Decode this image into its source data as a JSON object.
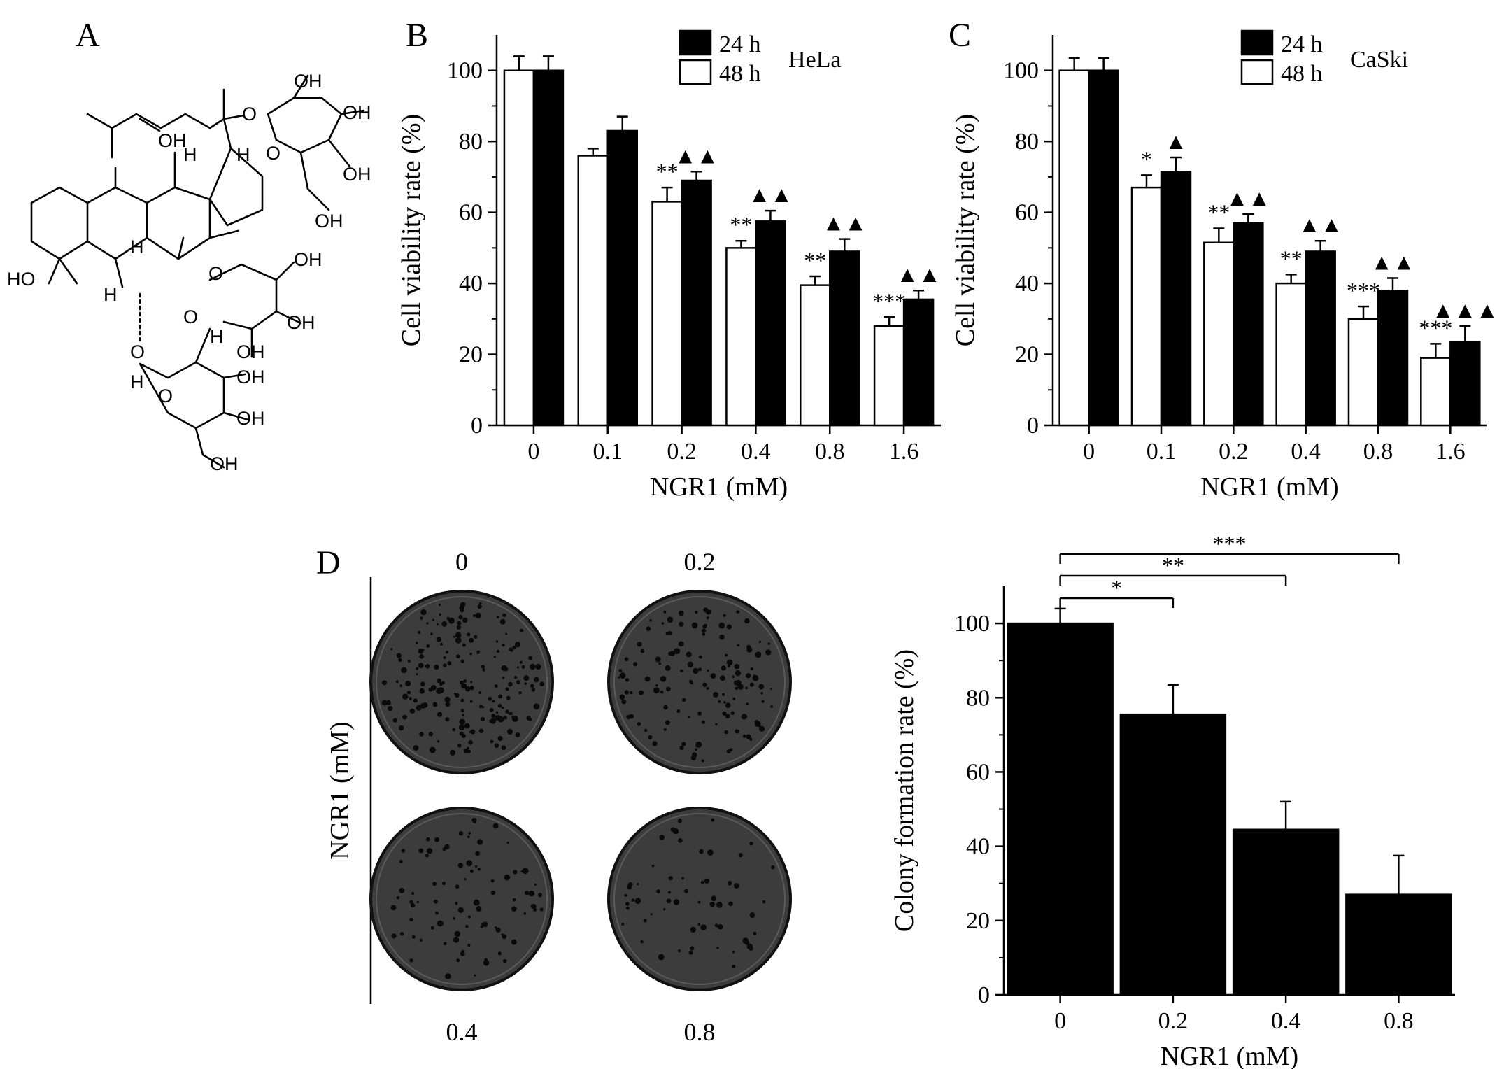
{
  "panels": {
    "a_label": "A",
    "b_label": "B",
    "c_label": "C",
    "d_label": "D"
  },
  "chart_data": [
    {
      "panel": "B",
      "type": "bar",
      "categories": [
        "0",
        "0.1",
        "0.2",
        "0.4",
        "0.8",
        "1.6"
      ],
      "xlabel": "NGR1 (mM)",
      "ylabel": "Cell viability rate (%)",
      "ylim": [
        0,
        110
      ],
      "yticks": [
        "0",
        "20",
        "40",
        "60",
        "80",
        "100"
      ],
      "cell_line": "HeLa",
      "legend": [
        "24 h",
        "48 h"
      ],
      "legend_position": "top-right",
      "series": [
        {
          "name": "48 h",
          "fill": "#ffffff",
          "values": [
            100,
            76,
            63,
            50,
            39.5,
            28
          ],
          "errors": [
            4,
            2,
            4,
            2,
            2.5,
            2.5
          ]
        },
        {
          "name": "24 h",
          "fill": "#000000",
          "values": [
            100,
            83,
            69,
            57.5,
            49,
            35.5
          ],
          "errors": [
            4,
            4,
            2.5,
            3,
            3.5,
            2.5
          ]
        }
      ],
      "annotations_48h": [
        "",
        "",
        "**",
        "**",
        "**",
        "***"
      ],
      "annotations_24h": [
        "",
        "",
        "▲▲",
        "▲▲",
        "▲▲",
        "▲▲"
      ]
    },
    {
      "panel": "C",
      "type": "bar",
      "categories": [
        "0",
        "0.1",
        "0.2",
        "0.4",
        "0.8",
        "1.6"
      ],
      "xlabel": "NGR1 (mM)",
      "ylabel": "Cell viability rate (%)",
      "ylim": [
        0,
        110
      ],
      "yticks": [
        "0",
        "20",
        "40",
        "60",
        "80",
        "100"
      ],
      "cell_line": "CaSki",
      "legend": [
        "24 h",
        "48 h"
      ],
      "legend_position": "top-right",
      "series": [
        {
          "name": "48 h",
          "fill": "#ffffff",
          "values": [
            100,
            67,
            51.5,
            40,
            30,
            19
          ],
          "errors": [
            3.5,
            3.5,
            4,
            2.5,
            3.5,
            4
          ]
        },
        {
          "name": "24 h",
          "fill": "#000000",
          "values": [
            100,
            71.5,
            57,
            49,
            38,
            23.5
          ],
          "errors": [
            3.5,
            4,
            2.5,
            3,
            3.5,
            4.5
          ]
        }
      ],
      "annotations_48h": [
        "",
        "*",
        "**",
        "**",
        "***",
        "***"
      ],
      "annotations_24h": [
        "",
        "▲",
        "▲▲",
        "▲▲",
        "▲▲",
        "▲▲▲"
      ]
    },
    {
      "panel": "D",
      "type": "bar",
      "categories": [
        "0",
        "0.2",
        "0.4",
        "0.8"
      ],
      "xlabel": "NGR1 (mM)",
      "ylabel": "Colony formation rate (%)",
      "ylim": [
        0,
        110
      ],
      "yticks": [
        "0",
        "20",
        "40",
        "60",
        "80",
        "100"
      ],
      "series": [
        {
          "name": "",
          "fill": "#000000",
          "values": [
            100,
            75.5,
            44.5,
            27
          ],
          "errors": [
            4,
            8,
            7.5,
            10.5
          ]
        }
      ],
      "brackets": [
        {
          "from": "0",
          "to": "0.2",
          "label": "*"
        },
        {
          "from": "0",
          "to": "0.4",
          "label": "**"
        },
        {
          "from": "0",
          "to": "0.8",
          "label": "***"
        }
      ]
    }
  ],
  "dishes": {
    "axis_label": "NGR1 (mM)",
    "items": [
      {
        "label": "0",
        "colonies": 200
      },
      {
        "label": "0.2",
        "colonies": 140
      },
      {
        "label": "0.4",
        "colonies": 90
      },
      {
        "label": "0.8",
        "colonies": 60
      }
    ],
    "plate_color": "#3c3c3c",
    "colony_color": "#0a0a0a"
  },
  "molecule": {
    "atoms": {
      "oh_top": "OH",
      "oh_right1": "OH",
      "oh_right2": "OH",
      "oh_ch2": "OH",
      "oh_c12": "OH",
      "ring_o1": "O",
      "link_o1": "O",
      "h_c13": "H",
      "h_c17": "H",
      "h_c9": "H",
      "ho_c3": "HO",
      "h_c5": "H",
      "link_o2": "O",
      "xyl_ring_o": "O",
      "xyl_oh1": "OH",
      "xyl_oh2": "OH",
      "xyl_oh3": "OH",
      "h_anomer1": "H",
      "link_o3": "O",
      "glc_o": "O",
      "h_anomer2": "H",
      "glc_oh1": "OH",
      "glc_oh2": "OH",
      "glc_ch2oh": "OH"
    }
  }
}
